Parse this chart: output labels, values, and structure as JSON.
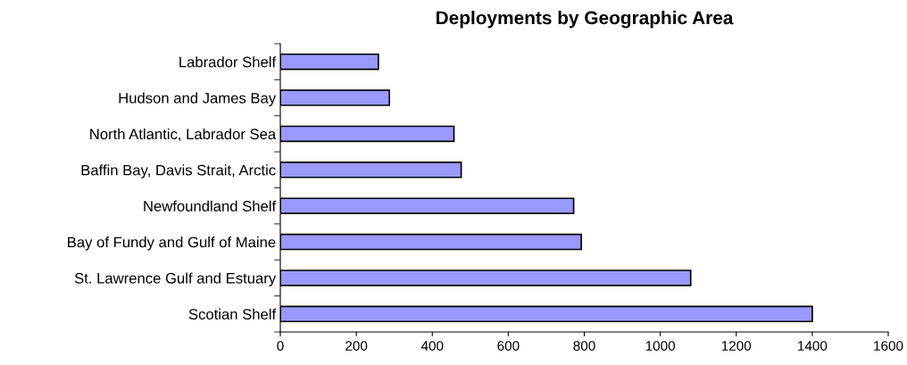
{
  "chart_data": {
    "type": "bar",
    "orientation": "horizontal",
    "title": "Deployments by Geographic Area",
    "categories": [
      "Labrador Shelf",
      "Hudson and James Bay",
      "North Atlantic, Labrador Sea",
      "Baffin Bay, Davis Strait, Arctic",
      "Newfoundland Shelf",
      "Bay of Fundy and Gulf of Maine",
      "St. Lawrence Gulf and Estuary",
      "Scotian Shelf"
    ],
    "values": [
      258,
      287,
      457,
      476,
      772,
      792,
      1080,
      1400
    ],
    "color": "#9999ff",
    "xlim": [
      0,
      1600
    ],
    "xticks": [
      0,
      200,
      400,
      600,
      800,
      1000,
      1200,
      1400,
      1600
    ],
    "grid": false,
    "legend": false
  }
}
